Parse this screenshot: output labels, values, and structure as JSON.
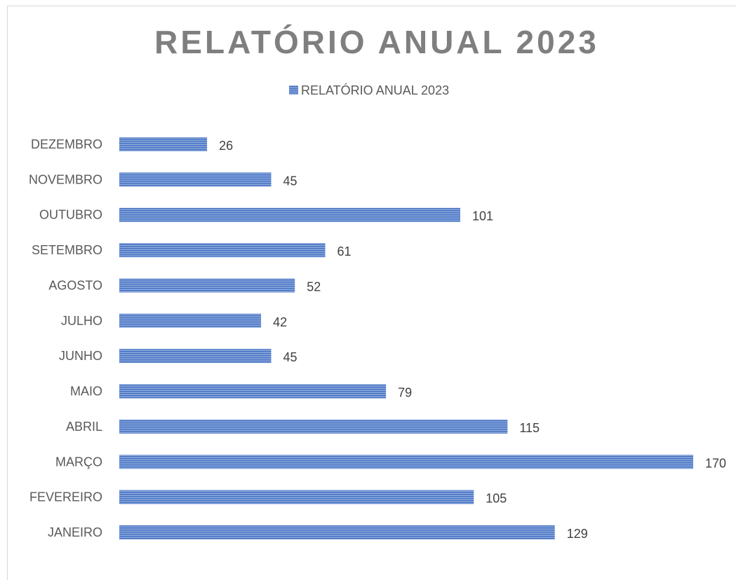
{
  "chart_data": {
    "type": "bar",
    "orientation": "horizontal",
    "title": "RELATÓRIO ANUAL 2023",
    "categories": [
      "JANEIRO",
      "FEVEREIRO",
      "MARÇO",
      "ABRIL",
      "MAIO",
      "JUNHO",
      "JULHO",
      "AGOSTO",
      "SETEMBRO",
      "OUTUBRO",
      "NOVEMBRO",
      "DEZEMBRO"
    ],
    "series": [
      {
        "name": "RELATÓRIO ANUAL 2023",
        "values": [
          129,
          105,
          170,
          115,
          79,
          45,
          42,
          52,
          61,
          101,
          45,
          26
        ],
        "color": "#4472c4"
      }
    ],
    "xlim": [
      0,
      170
    ],
    "grid": false,
    "legend_position": "top",
    "data_labels": true
  }
}
